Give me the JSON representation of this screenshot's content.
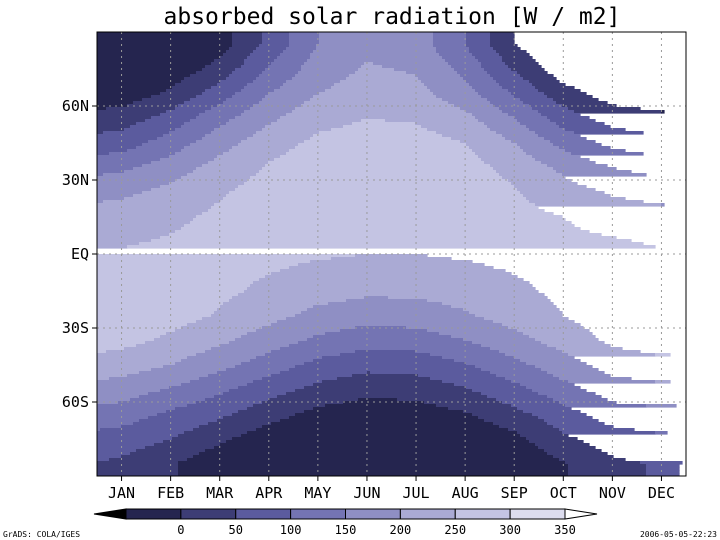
{
  "chart_data": {
    "type": "heatmap",
    "title": "absorbed solar radiation [W / m2]",
    "xlabel": "",
    "ylabel": "",
    "x_ticks": [
      "JAN",
      "FEB",
      "MAR",
      "APR",
      "MAY",
      "JUN",
      "JUL",
      "AUG",
      "SEP",
      "OCT",
      "NOV",
      "DEC"
    ],
    "y_ticks": [
      {
        "label": "60N",
        "lat": 60
      },
      {
        "label": "30N",
        "lat": 30
      },
      {
        "label": "EQ",
        "lat": 0
      },
      {
        "label": "30S",
        "lat": -30
      },
      {
        "label": "60S",
        "lat": -60
      }
    ],
    "y_range": [
      -90,
      90
    ],
    "grid": true,
    "legend": "bottom colorbar",
    "levels": [
      0,
      50,
      100,
      150,
      200,
      250,
      300,
      350
    ],
    "colors": [
      "#000000",
      "#25254f",
      "#3d3d75",
      "#5b5b9e",
      "#7474b3",
      "#8f8fc4",
      "#aaaad4",
      "#c4c4e3",
      "#dcdcee",
      "#ffffff"
    ],
    "months": [
      1,
      2,
      3,
      4,
      5,
      6,
      7,
      8,
      9,
      10,
      11,
      12
    ],
    "latitudes": [
      -85,
      -75,
      -65,
      -55,
      -45,
      -35,
      -25,
      -15,
      -5,
      5,
      15,
      25,
      35,
      45,
      55,
      65,
      75,
      85
    ],
    "values": [
      [
        90,
        55,
        15,
        0,
        0,
        0,
        0,
        0,
        10,
        45,
        90,
        105
      ],
      [
        125,
        100,
        60,
        20,
        5,
        0,
        0,
        5,
        35,
        90,
        125,
        140
      ],
      [
        175,
        140,
        110,
        70,
        35,
        20,
        25,
        45,
        85,
        130,
        175,
        185
      ],
      [
        225,
        195,
        160,
        120,
        85,
        65,
        70,
        95,
        135,
        180,
        225,
        235
      ],
      [
        275,
        250,
        215,
        175,
        135,
        115,
        120,
        145,
        185,
        230,
        270,
        285
      ],
      [
        315,
        290,
        260,
        225,
        190,
        170,
        175,
        200,
        235,
        270,
        310,
        325
      ],
      [
        340,
        320,
        295,
        265,
        235,
        220,
        225,
        245,
        270,
        300,
        330,
        345
      ],
      [
        330,
        325,
        310,
        290,
        270,
        260,
        260,
        270,
        290,
        310,
        325,
        330
      ],
      [
        315,
        320,
        315,
        305,
        295,
        290,
        290,
        295,
        305,
        315,
        315,
        315
      ],
      [
        295,
        305,
        315,
        315,
        315,
        310,
        310,
        315,
        315,
        310,
        305,
        295
      ],
      [
        275,
        290,
        310,
        320,
        325,
        330,
        330,
        325,
        315,
        300,
        280,
        270
      ],
      [
        240,
        265,
        295,
        320,
        335,
        345,
        340,
        330,
        305,
        270,
        245,
        230
      ],
      [
        190,
        225,
        270,
        305,
        330,
        340,
        340,
        320,
        285,
        240,
        200,
        180
      ],
      [
        125,
        175,
        230,
        280,
        310,
        320,
        320,
        300,
        250,
        185,
        135,
        115
      ],
      [
        75,
        120,
        185,
        240,
        285,
        300,
        295,
        265,
        200,
        125,
        80,
        65
      ],
      [
        20,
        60,
        125,
        200,
        250,
        275,
        265,
        220,
        145,
        70,
        25,
        10
      ],
      [
        0,
        15,
        70,
        155,
        225,
        255,
        245,
        185,
        95,
        20,
        0,
        0
      ],
      [
        0,
        0,
        25,
        115,
        200,
        240,
        225,
        150,
        50,
        0,
        0,
        0
      ]
    ]
  },
  "colorbar_labels": [
    "0",
    "50",
    "100",
    "150",
    "200",
    "250",
    "300",
    "350"
  ],
  "footer": {
    "left": "GrADS: COLA/IGES",
    "right": "2006-05-05-22:23"
  }
}
